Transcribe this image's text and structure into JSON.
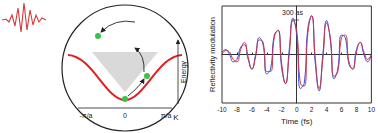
{
  "diagram": {
    "axis_labels": [
      "-π/a",
      "0",
      "π/a"
    ],
    "k_label": "K",
    "energy_label": "Energy"
  },
  "chart_data": {
    "type": "line",
    "x_label": "Time (fs)",
    "y_label": "Reflectivity modulation",
    "annotation": "300 as",
    "x": [
      -10,
      -9.5,
      -9,
      -8.5,
      -8,
      -7.5,
      -7,
      -6.5,
      -6,
      -5.5,
      -5,
      -4.5,
      -4,
      -3.5,
      -3,
      -2.5,
      -2,
      -1.5,
      -1,
      -0.5,
      0,
      0.5,
      1,
      1.5,
      2,
      2.5,
      3,
      3.5,
      4,
      4.5,
      5,
      5.5,
      6,
      6.5,
      7,
      7.5,
      8,
      8.5,
      9,
      9.5,
      10
    ],
    "series": [
      {
        "color": "#3a4fd6",
        "values": [
          0.05,
          0.1,
          0.0,
          -0.15,
          -0.1,
          0.15,
          0.2,
          -0.1,
          -0.3,
          0.0,
          0.35,
          0.2,
          -0.4,
          -0.3,
          0.4,
          0.5,
          -0.3,
          -0.6,
          0.1,
          0.75,
          0.4,
          -0.7,
          -0.6,
          0.55,
          0.8,
          -0.2,
          -0.75,
          0.0,
          0.7,
          0.3,
          -0.5,
          -0.3,
          0.4,
          0.35,
          -0.2,
          -0.3,
          0.1,
          0.25,
          0.0,
          -0.15,
          0.0
        ]
      },
      {
        "color": "#c8324a",
        "values": [
          0.0,
          0.08,
          0.05,
          -0.1,
          -0.15,
          0.1,
          0.25,
          -0.05,
          -0.3,
          -0.05,
          0.3,
          0.25,
          -0.35,
          -0.35,
          0.35,
          0.5,
          -0.2,
          -0.6,
          0.0,
          0.7,
          0.5,
          -0.6,
          -0.65,
          0.45,
          0.8,
          -0.1,
          -0.7,
          -0.1,
          0.65,
          0.35,
          -0.45,
          -0.35,
          0.35,
          0.4,
          -0.15,
          -0.3,
          0.05,
          0.25,
          0.05,
          -0.1,
          0.0
        ]
      }
    ],
    "xlim": [
      -10,
      10
    ],
    "xticks": [
      -10,
      -8,
      -6,
      -4,
      -2,
      0,
      2,
      4,
      6,
      8,
      10
    ],
    "ylim": [
      -1,
      1
    ],
    "tick_labels": "x",
    "grid": false
  }
}
